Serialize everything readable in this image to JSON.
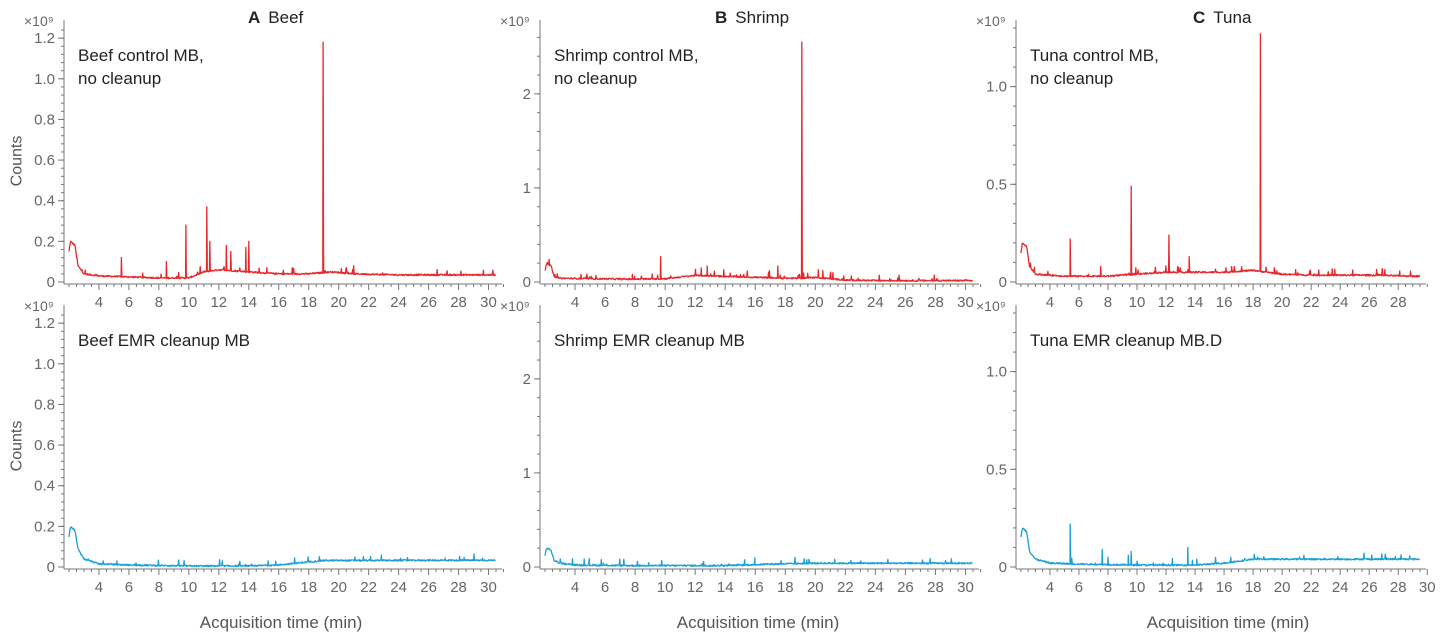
{
  "columns": [
    {
      "letter": "A",
      "name": "Beef"
    },
    {
      "letter": "B",
      "name": "Shrimp"
    },
    {
      "letter": "C",
      "name": "Tuna"
    }
  ],
  "y_axis_label": "Counts",
  "x_axis_label": "Acquisition time (min)",
  "multiplier_label": "×10⁹",
  "colors": {
    "control": "#e8272a",
    "emr": "#1a9fd6",
    "axis": "#777777",
    "tick_text": "#666666"
  },
  "chart_data": [
    {
      "type": "line",
      "panel": "beef-control",
      "label": [
        "Beef control MB,",
        "no cleanup"
      ],
      "color": "#e8272a",
      "xlim": [
        1.8,
        30.5
      ],
      "ylim": [
        0,
        1.25
      ],
      "xticks": [
        4,
        6,
        8,
        10,
        12,
        14,
        16,
        18,
        20,
        22,
        24,
        26,
        28,
        30
      ],
      "yticks": [
        0,
        0.2,
        0.4,
        0.6,
        0.8,
        1.0,
        1.2
      ],
      "ytick_labels": [
        "0",
        "0.2",
        "0.4",
        "0.6",
        "0.8",
        "1.0",
        "1.2"
      ],
      "baseline": [
        [
          2.0,
          0.15
        ],
        [
          2.1,
          0.2
        ],
        [
          2.4,
          0.18
        ],
        [
          2.6,
          0.08
        ],
        [
          3.0,
          0.04
        ],
        [
          4,
          0.03
        ],
        [
          6,
          0.025
        ],
        [
          8,
          0.02
        ],
        [
          10,
          0.02
        ],
        [
          11,
          0.05
        ],
        [
          12,
          0.06
        ],
        [
          14,
          0.05
        ],
        [
          16,
          0.04
        ],
        [
          18,
          0.04
        ],
        [
          19.5,
          0.05
        ],
        [
          21,
          0.04
        ],
        [
          24,
          0.035
        ],
        [
          28,
          0.035
        ],
        [
          30.5,
          0.035
        ]
      ],
      "peaks": [
        [
          5.5,
          0.12
        ],
        [
          8.5,
          0.1
        ],
        [
          9.8,
          0.28
        ],
        [
          11.2,
          0.37
        ],
        [
          11.4,
          0.2
        ],
        [
          12.5,
          0.18
        ],
        [
          12.8,
          0.15
        ],
        [
          13.8,
          0.17
        ],
        [
          14.0,
          0.2
        ],
        [
          15.2,
          0.07
        ],
        [
          16.9,
          0.07
        ],
        [
          18.96,
          1.18
        ],
        [
          21.0,
          0.08
        ]
      ]
    },
    {
      "type": "line",
      "panel": "beef-emr",
      "label": [
        "Beef EMR cleanup MB"
      ],
      "color": "#1a9fd6",
      "xlim": [
        1.8,
        30.5
      ],
      "ylim": [
        0,
        1.25
      ],
      "xticks": [
        4,
        6,
        8,
        10,
        12,
        14,
        16,
        18,
        20,
        22,
        24,
        26,
        28,
        30
      ],
      "yticks": [
        0,
        0.2,
        0.4,
        0.6,
        0.8,
        1.0,
        1.2
      ],
      "ytick_labels": [
        "0",
        "0.2",
        "0.4",
        "0.6",
        "0.8",
        "1.0",
        "1.2"
      ],
      "baseline": [
        [
          2.0,
          0.15
        ],
        [
          2.1,
          0.2
        ],
        [
          2.4,
          0.18
        ],
        [
          2.6,
          0.09
        ],
        [
          3.0,
          0.04
        ],
        [
          4,
          0.015
        ],
        [
          6,
          0.01
        ],
        [
          10,
          0.005
        ],
        [
          14,
          0.005
        ],
        [
          16,
          0.01
        ],
        [
          18,
          0.025
        ],
        [
          19,
          0.032
        ],
        [
          22,
          0.032
        ],
        [
          26,
          0.033
        ],
        [
          30.5,
          0.033
        ]
      ],
      "peaks": [
        [
          5.2,
          0.03
        ],
        [
          14.2,
          0.015
        ]
      ]
    },
    {
      "type": "line",
      "panel": "shrimp-control",
      "label": [
        "Shrimp control MB,",
        "no cleanup"
      ],
      "color": "#e8272a",
      "xlim": [
        1.8,
        30.5
      ],
      "ylim": [
        0,
        2.7
      ],
      "xticks": [
        4,
        6,
        8,
        10,
        12,
        14,
        16,
        18,
        20,
        22,
        24,
        26,
        28,
        30
      ],
      "yticks": [
        0,
        1,
        2
      ],
      "ytick_labels": [
        "0",
        "1",
        "2"
      ],
      "baseline": [
        [
          2.0,
          0.12
        ],
        [
          2.1,
          0.2
        ],
        [
          2.4,
          0.17
        ],
        [
          2.6,
          0.06
        ],
        [
          3.0,
          0.04
        ],
        [
          5,
          0.035
        ],
        [
          8,
          0.03
        ],
        [
          10,
          0.035
        ],
        [
          12,
          0.07
        ],
        [
          14,
          0.06
        ],
        [
          16,
          0.05
        ],
        [
          18,
          0.04
        ],
        [
          19,
          0.04
        ],
        [
          20,
          0.05
        ],
        [
          22,
          0.02
        ],
        [
          24,
          0.015
        ],
        [
          28,
          0.015
        ],
        [
          30.5,
          0.015
        ]
      ],
      "peaks": [
        [
          9.7,
          0.27
        ],
        [
          12.4,
          0.15
        ],
        [
          12.8,
          0.17
        ],
        [
          13.9,
          0.13
        ],
        [
          17.5,
          0.17
        ],
        [
          19.1,
          2.55
        ],
        [
          20.2,
          0.13
        ],
        [
          20.5,
          0.12
        ]
      ]
    },
    {
      "type": "line",
      "panel": "shrimp-emr",
      "label": [
        "Shrimp EMR cleanup MB"
      ],
      "color": "#1a9fd6",
      "xlim": [
        1.8,
        30.5
      ],
      "ylim": [
        0,
        2.7
      ],
      "xticks": [
        4,
        6,
        8,
        10,
        12,
        14,
        16,
        18,
        20,
        22,
        24,
        26,
        28,
        30
      ],
      "yticks": [
        0,
        1,
        2
      ],
      "ytick_labels": [
        "0",
        "1",
        "2"
      ],
      "baseline": [
        [
          2.0,
          0.12
        ],
        [
          2.1,
          0.2
        ],
        [
          2.4,
          0.18
        ],
        [
          2.6,
          0.07
        ],
        [
          3.0,
          0.04
        ],
        [
          4,
          0.02
        ],
        [
          8,
          0.015
        ],
        [
          14,
          0.015
        ],
        [
          17,
          0.03
        ],
        [
          20,
          0.04
        ],
        [
          24,
          0.04
        ],
        [
          30.5,
          0.04
        ]
      ],
      "peaks": [
        [
          5.2,
          0.03
        ],
        [
          16.0,
          0.03
        ]
      ]
    },
    {
      "type": "line",
      "panel": "tuna-control",
      "label": [
        "Tuna control MB,",
        "no cleanup"
      ],
      "color": "#e8272a",
      "xlim": [
        1.8,
        29.5
      ],
      "ylim": [
        0,
        1.3
      ],
      "xticks": [
        4,
        6,
        8,
        10,
        12,
        14,
        16,
        18,
        20,
        22,
        24,
        26,
        28
      ],
      "yticks": [
        0,
        0.5,
        1.0
      ],
      "ytick_labels": [
        "0",
        "0.5",
        "1.0"
      ],
      "baseline": [
        [
          2.0,
          0.15
        ],
        [
          2.1,
          0.2
        ],
        [
          2.4,
          0.18
        ],
        [
          2.6,
          0.08
        ],
        [
          3.0,
          0.04
        ],
        [
          5,
          0.03
        ],
        [
          8,
          0.03
        ],
        [
          10,
          0.04
        ],
        [
          12,
          0.05
        ],
        [
          14,
          0.05
        ],
        [
          16,
          0.05
        ],
        [
          18,
          0.06
        ],
        [
          19,
          0.05
        ],
        [
          20,
          0.04
        ],
        [
          22,
          0.035
        ],
        [
          26,
          0.035
        ],
        [
          29,
          0.03
        ]
      ],
      "peaks": [
        [
          5.4,
          0.22
        ],
        [
          7.5,
          0.08
        ],
        [
          9.6,
          0.49
        ],
        [
          12.2,
          0.24
        ],
        [
          13.6,
          0.13
        ],
        [
          16.7,
          0.08
        ],
        [
          18.5,
          1.27
        ],
        [
          19.5,
          0.06
        ]
      ]
    },
    {
      "type": "line",
      "panel": "tuna-emr",
      "label": [
        "Tuna EMR cleanup MB.D"
      ],
      "color": "#1a9fd6",
      "xlim": [
        1.8,
        29.5
      ],
      "ylim": [
        0,
        1.3
      ],
      "xticks": [
        4,
        6,
        8,
        10,
        12,
        14,
        16,
        18,
        20,
        22,
        24,
        26,
        28,
        30
      ],
      "yticks": [
        0,
        0.5,
        1.0
      ],
      "ytick_labels": [
        "0",
        "0.5",
        "1.0"
      ],
      "baseline": [
        [
          2.0,
          0.15
        ],
        [
          2.1,
          0.2
        ],
        [
          2.4,
          0.18
        ],
        [
          2.6,
          0.08
        ],
        [
          3.0,
          0.04
        ],
        [
          4,
          0.02
        ],
        [
          6,
          0.015
        ],
        [
          10,
          0.01
        ],
        [
          14,
          0.01
        ],
        [
          16,
          0.02
        ],
        [
          18,
          0.04
        ],
        [
          20,
          0.04
        ],
        [
          24,
          0.04
        ],
        [
          29,
          0.04
        ]
      ],
      "peaks": [
        [
          5.4,
          0.22
        ],
        [
          7.6,
          0.09
        ],
        [
          8.0,
          0.05
        ],
        [
          9.4,
          0.06
        ],
        [
          9.6,
          0.08
        ],
        [
          13.5,
          0.1
        ],
        [
          11.8,
          0.02
        ]
      ]
    }
  ]
}
